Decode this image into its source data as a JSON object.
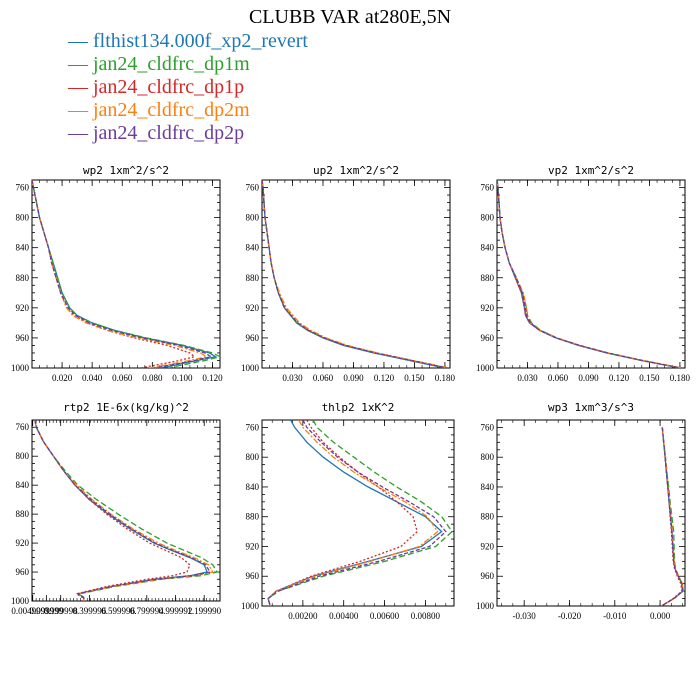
{
  "title": "CLUBB VAR at280E,5N",
  "legend": [
    {
      "label": "flthist134.000f_xp2_revert",
      "color": "#1f77b4"
    },
    {
      "label": "jan24_cldfrc_dp1m",
      "color": "#2ca02c"
    },
    {
      "label": "jan24_cldfrc_dp1p",
      "color": "#d62728"
    },
    {
      "label": "jan24_cldfrc_dp2m",
      "color": "#ff7f0e"
    },
    {
      "label": "jan24_cldfrc_dp2p",
      "color": "#6a3d9a"
    }
  ],
  "chart_data": [
    {
      "type": "line",
      "title": "wp2  1xm^2/s^2",
      "ylim": [
        1000,
        750
      ],
      "xlim": [
        0,
        0.125
      ],
      "yticks": [
        "760",
        "800",
        "840",
        "880",
        "920",
        "960",
        "1000"
      ],
      "xticks": [
        "0.020",
        "0.040",
        "0.060",
        "0.080",
        "0.100",
        "0.120"
      ],
      "xtick_values": [
        0.02,
        0.04,
        0.06,
        0.08,
        0.1,
        0.12
      ],
      "y": [
        750,
        760,
        780,
        800,
        820,
        840,
        860,
        880,
        900,
        920,
        930,
        940,
        950,
        960,
        970,
        980,
        985,
        990,
        1000
      ],
      "series": [
        {
          "values": [
            0.0,
            0.001,
            0.003,
            0.005,
            0.008,
            0.011,
            0.014,
            0.017,
            0.02,
            0.025,
            0.03,
            0.04,
            0.055,
            0.075,
            0.1,
            0.118,
            0.122,
            0.11,
            0.085
          ]
        },
        {
          "values": [
            0.0,
            0.001,
            0.003,
            0.005,
            0.008,
            0.011,
            0.014,
            0.017,
            0.02,
            0.025,
            0.03,
            0.04,
            0.055,
            0.076,
            0.101,
            0.12,
            0.125,
            0.115,
            0.09
          ]
        },
        {
          "values": [
            0.0,
            0.001,
            0.003,
            0.005,
            0.008,
            0.011,
            0.013,
            0.016,
            0.019,
            0.023,
            0.028,
            0.037,
            0.05,
            0.068,
            0.09,
            0.105,
            0.108,
            0.098,
            0.072
          ]
        },
        {
          "values": [
            0.0,
            0.001,
            0.003,
            0.005,
            0.008,
            0.011,
            0.013,
            0.016,
            0.019,
            0.023,
            0.027,
            0.036,
            0.05,
            0.07,
            0.095,
            0.112,
            0.116,
            0.105,
            0.078
          ]
        },
        {
          "values": [
            0.0,
            0.001,
            0.003,
            0.005,
            0.008,
            0.011,
            0.013,
            0.016,
            0.019,
            0.024,
            0.029,
            0.038,
            0.053,
            0.073,
            0.098,
            0.115,
            0.119,
            0.108,
            0.082
          ]
        }
      ]
    },
    {
      "type": "line",
      "title": "up2  1xm^2/s^2",
      "ylim": [
        1000,
        750
      ],
      "xlim": [
        0,
        0.185
      ],
      "yticks": [
        "760",
        "800",
        "840",
        "880",
        "920",
        "960",
        "1000"
      ],
      "xticks": [
        "0.030",
        "0.060",
        "0.090",
        "0.120",
        "0.150",
        "0.180"
      ],
      "xtick_values": [
        0.03,
        0.06,
        0.09,
        0.12,
        0.15,
        0.18
      ],
      "y": [
        750,
        760,
        780,
        800,
        820,
        840,
        860,
        880,
        900,
        920,
        940,
        950,
        960,
        970,
        980,
        990,
        1000
      ],
      "series": [
        {
          "values": [
            0.0,
            0.001,
            0.002,
            0.003,
            0.005,
            0.007,
            0.009,
            0.012,
            0.016,
            0.022,
            0.034,
            0.045,
            0.06,
            0.08,
            0.11,
            0.145,
            0.18
          ]
        },
        {
          "values": [
            0.0,
            0.001,
            0.002,
            0.003,
            0.005,
            0.007,
            0.009,
            0.012,
            0.016,
            0.022,
            0.034,
            0.045,
            0.061,
            0.082,
            0.112,
            0.147,
            0.182
          ]
        },
        {
          "values": [
            0.0,
            0.001,
            0.002,
            0.003,
            0.005,
            0.007,
            0.009,
            0.012,
            0.017,
            0.023,
            0.036,
            0.047,
            0.062,
            0.083,
            0.113,
            0.148,
            0.183
          ]
        },
        {
          "values": [
            0.0,
            0.001,
            0.002,
            0.003,
            0.005,
            0.007,
            0.009,
            0.012,
            0.017,
            0.024,
            0.037,
            0.048,
            0.063,
            0.084,
            0.114,
            0.149,
            0.184
          ]
        },
        {
          "values": [
            0.0,
            0.001,
            0.002,
            0.003,
            0.005,
            0.007,
            0.009,
            0.012,
            0.016,
            0.022,
            0.035,
            0.046,
            0.061,
            0.082,
            0.112,
            0.147,
            0.182
          ]
        }
      ]
    },
    {
      "type": "line",
      "title": "vp2  1xm^2/s^2",
      "ylim": [
        1000,
        750
      ],
      "xlim": [
        0,
        0.185
      ],
      "yticks": [
        "760",
        "800",
        "840",
        "880",
        "920",
        "960",
        "1000"
      ],
      "xticks": [
        "0.030",
        "0.060",
        "0.090",
        "0.120",
        "0.150",
        "0.180"
      ],
      "xtick_values": [
        0.03,
        0.06,
        0.09,
        0.12,
        0.15,
        0.18
      ],
      "y": [
        750,
        760,
        780,
        800,
        820,
        840,
        860,
        880,
        900,
        920,
        930,
        940,
        950,
        960,
        970,
        980,
        990,
        1000
      ],
      "series": [
        {
          "values": [
            0.0,
            0.001,
            0.002,
            0.003,
            0.005,
            0.008,
            0.012,
            0.018,
            0.024,
            0.027,
            0.028,
            0.032,
            0.042,
            0.058,
            0.08,
            0.108,
            0.142,
            0.18
          ]
        },
        {
          "values": [
            0.0,
            0.001,
            0.002,
            0.003,
            0.005,
            0.008,
            0.012,
            0.019,
            0.025,
            0.029,
            0.03,
            0.034,
            0.043,
            0.059,
            0.081,
            0.109,
            0.143,
            0.181
          ]
        },
        {
          "values": [
            0.0,
            0.001,
            0.002,
            0.003,
            0.005,
            0.008,
            0.012,
            0.018,
            0.024,
            0.027,
            0.028,
            0.032,
            0.042,
            0.058,
            0.081,
            0.109,
            0.143,
            0.181
          ]
        },
        {
          "values": [
            0.0,
            0.001,
            0.002,
            0.003,
            0.005,
            0.008,
            0.012,
            0.019,
            0.026,
            0.029,
            0.03,
            0.033,
            0.043,
            0.059,
            0.082,
            0.11,
            0.144,
            0.182
          ]
        },
        {
          "values": [
            0.0,
            0.001,
            0.002,
            0.003,
            0.005,
            0.008,
            0.012,
            0.019,
            0.025,
            0.028,
            0.029,
            0.033,
            0.042,
            0.058,
            0.081,
            0.109,
            0.143,
            0.181
          ]
        }
      ]
    },
    {
      "type": "line",
      "title": "rtp2  1E-6x(kg/kg)^2",
      "ylim": [
        1000,
        750
      ],
      "xlim": [
        0,
        1.31
      ],
      "yticks": [
        "760",
        "800",
        "840",
        "880",
        "920",
        "960",
        "1000"
      ],
      "xticks": [
        "0.00499999",
        "0.099999",
        "0.199998",
        "0.399996",
        "0.599996",
        "0.799994",
        "0.999992",
        "1.199990"
      ],
      "xtick_values": [
        0.005,
        0.1,
        0.2,
        0.4,
        0.6,
        0.8,
        1.0,
        1.2
      ],
      "y": [
        750,
        760,
        780,
        800,
        820,
        840,
        860,
        880,
        900,
        920,
        930,
        940,
        950,
        960,
        965,
        970,
        980,
        990,
        995,
        1000
      ],
      "series": [
        {
          "values": [
            0.02,
            0.03,
            0.08,
            0.15,
            0.22,
            0.3,
            0.4,
            0.53,
            0.68,
            0.85,
            0.97,
            1.1,
            1.2,
            1.22,
            1.1,
            0.85,
            0.55,
            0.32,
            0.36,
            0.36
          ]
        },
        {
          "values": [
            0.02,
            0.03,
            0.08,
            0.15,
            0.23,
            0.32,
            0.45,
            0.6,
            0.76,
            0.94,
            1.06,
            1.18,
            1.26,
            1.29,
            1.18,
            0.9,
            0.58,
            0.33,
            0.36,
            0.36
          ]
        },
        {
          "values": [
            0.02,
            0.03,
            0.08,
            0.15,
            0.22,
            0.3,
            0.4,
            0.52,
            0.66,
            0.82,
            0.93,
            1.04,
            1.1,
            1.08,
            0.98,
            0.8,
            0.52,
            0.31,
            0.35,
            0.35
          ]
        },
        {
          "values": [
            0.02,
            0.03,
            0.08,
            0.15,
            0.22,
            0.31,
            0.42,
            0.55,
            0.7,
            0.88,
            1.0,
            1.13,
            1.23,
            1.26,
            1.14,
            0.88,
            0.56,
            0.32,
            0.36,
            0.36
          ]
        },
        {
          "values": [
            0.02,
            0.03,
            0.08,
            0.15,
            0.22,
            0.3,
            0.41,
            0.54,
            0.69,
            0.86,
            0.98,
            1.11,
            1.21,
            1.24,
            1.12,
            0.86,
            0.55,
            0.32,
            0.36,
            0.36
          ]
        }
      ]
    },
    {
      "type": "line",
      "title": "thlp2  1xK^2",
      "ylim": [
        1000,
        750
      ],
      "xlim": [
        0,
        0.0094
      ],
      "yticks": [
        "760",
        "800",
        "840",
        "880",
        "920",
        "960",
        "1000"
      ],
      "xticks": [
        "0.00200",
        "0.00400",
        "0.00600",
        "0.00800"
      ],
      "xtick_values": [
        0.002,
        0.004,
        0.006,
        0.008
      ],
      "y": [
        750,
        760,
        780,
        800,
        820,
        840,
        860,
        880,
        900,
        920,
        940,
        960,
        980,
        990,
        1000
      ],
      "series": [
        {
          "values": [
            0.0014,
            0.0016,
            0.0022,
            0.003,
            0.004,
            0.0052,
            0.0066,
            0.008,
            0.0088,
            0.0078,
            0.0052,
            0.0025,
            0.0007,
            0.0003,
            0.0004
          ]
        },
        {
          "values": [
            0.0025,
            0.0027,
            0.0035,
            0.0045,
            0.0055,
            0.0066,
            0.0078,
            0.0088,
            0.0093,
            0.0085,
            0.006,
            0.003,
            0.0008,
            0.0003,
            0.0004
          ]
        },
        {
          "values": [
            0.0022,
            0.0024,
            0.003,
            0.0038,
            0.0047,
            0.0057,
            0.0066,
            0.0074,
            0.0076,
            0.0068,
            0.0048,
            0.0024,
            0.0007,
            0.0003,
            0.0004
          ]
        },
        {
          "values": [
            0.0018,
            0.002,
            0.0027,
            0.0035,
            0.0045,
            0.0057,
            0.007,
            0.0081,
            0.0086,
            0.0077,
            0.0053,
            0.0026,
            0.0007,
            0.0003,
            0.0004
          ]
        },
        {
          "values": [
            0.002,
            0.0022,
            0.0029,
            0.0037,
            0.0047,
            0.0059,
            0.0072,
            0.0084,
            0.009,
            0.0082,
            0.0057,
            0.0028,
            0.0008,
            0.0003,
            0.0004
          ]
        }
      ]
    },
    {
      "type": "line",
      "title": "wp3  1xm^3/s^3",
      "ylim": [
        1000,
        750
      ],
      "xlim": [
        -0.036,
        0.0055
      ],
      "yticks": [
        "760",
        "800",
        "840",
        "880",
        "920",
        "960",
        "1000"
      ],
      "xticks": [
        "-0.030",
        "-0.020",
        "-0.010",
        "0.000"
      ],
      "xtick_values": [
        -0.03,
        -0.02,
        -0.01,
        0.0
      ],
      "y": [
        760,
        780,
        800,
        820,
        840,
        860,
        880,
        900,
        920,
        940,
        950,
        960,
        970,
        980,
        990,
        1000
      ],
      "series": [
        {
          "values": [
            0.0005,
            0.0008,
            0.0011,
            0.0014,
            0.0017,
            0.002,
            0.0023,
            0.0026,
            0.0028,
            0.003,
            0.0033,
            0.004,
            0.0048,
            0.005,
            0.003,
            0.0003
          ]
        },
        {
          "values": [
            0.0005,
            0.0008,
            0.0012,
            0.0015,
            0.0019,
            0.0022,
            0.0026,
            0.003,
            0.0031,
            0.0032,
            0.0034,
            0.0041,
            0.0049,
            0.0051,
            0.0031,
            0.0003
          ]
        },
        {
          "values": [
            0.0005,
            0.0008,
            0.0011,
            0.0014,
            0.0017,
            0.002,
            0.0022,
            0.0025,
            0.0027,
            0.0029,
            0.0032,
            0.0038,
            0.0046,
            0.0048,
            0.0029,
            0.0003
          ]
        },
        {
          "values": [
            0.0005,
            0.0008,
            0.0012,
            0.0015,
            0.0018,
            0.0021,
            0.0024,
            0.0027,
            0.0029,
            0.0031,
            0.0034,
            0.0041,
            0.0049,
            0.0051,
            0.0031,
            0.0003
          ]
        },
        {
          "values": [
            0.0005,
            0.0008,
            0.0011,
            0.0014,
            0.0017,
            0.002,
            0.0023,
            0.0026,
            0.0028,
            0.003,
            0.0033,
            0.004,
            0.0048,
            0.005,
            0.003,
            0.0003
          ]
        }
      ]
    }
  ]
}
